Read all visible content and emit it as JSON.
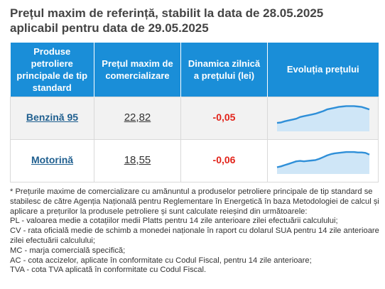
{
  "title_line1": "Prețul maxim de referință, stabilit la data de 28.05.2025",
  "title_line2": "aplicabil pentru data de 29.05.2025",
  "table": {
    "headers": [
      "Produse petroliere principale de tip standard",
      "Prețul maxim de comercializare",
      "Dinamica zilnică a prețului (lei)",
      "Evoluția prețului"
    ],
    "rows": [
      {
        "product": "Benzină 95",
        "price": "22,82",
        "change": "-0,05"
      },
      {
        "product": "Motorină",
        "price": "18,55",
        "change": "-0,06"
      }
    ]
  },
  "colors": {
    "header_bg": "#1a8ed8",
    "negative": "#e2231a",
    "link": "#1f5f8f",
    "spark_line": "#2f8fd8",
    "spark_fill": "#cfe6f7"
  },
  "sparklines": [
    {
      "values": [
        20,
        21,
        24,
        26,
        28,
        30,
        34,
        36,
        38,
        40,
        42,
        45,
        48,
        52,
        54,
        56,
        58,
        59,
        60,
        60,
        60,
        59,
        58,
        55,
        52
      ]
    },
    {
      "values": [
        16,
        18,
        21,
        24,
        27,
        30,
        31,
        30,
        31,
        32,
        33,
        36,
        40,
        44,
        47,
        49,
        50,
        51,
        52,
        52,
        52,
        51,
        51,
        50,
        46
      ]
    }
  ],
  "notes": [
    "* Prețurile maxime de comercializare cu amănuntul a produselor petroliere principale de tip standard se stabilesc de către Agenția Națională pentru Reglementare în Energetică în baza Metodologiei de calcul și aplicare a prețurilor la produsele petroliere și sunt calculate reieșind din următoarele:",
    "PL - valoarea medie a cotațiilor medii Platts pentru 14 zile anterioare zilei efectuării calculului;",
    "CV - rata oficială medie de schimb a monedei naționale în raport cu dolarul SUA pentru 14 zile anterioare zilei efectuării calculului;",
    "MC - marja comercială specifică;",
    "AC - cota accizelor, aplicate în conformitate cu Codul Fiscal, pentru 14 zile anterioare;",
    "TVA - cota TVA aplicată în conformitate cu Codul Fiscal."
  ]
}
